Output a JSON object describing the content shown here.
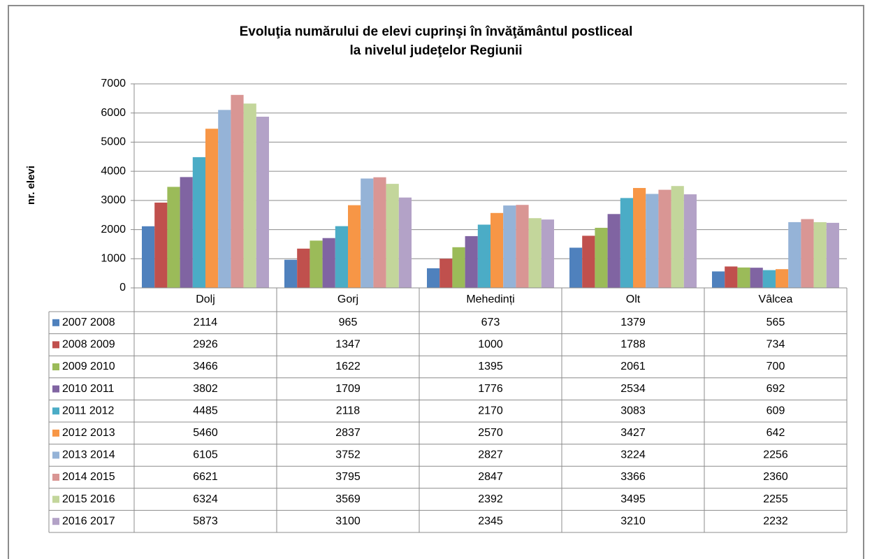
{
  "chart_data": {
    "type": "bar",
    "title": [
      "Evoluţia numărului de elevi cuprinşi în învăţământul postliceal",
      "la nivelul judeţelor Regiunii"
    ],
    "y_label": "nr. elevi",
    "categories": [
      "Dolj",
      "Gorj",
      "Mehedinți",
      "Olt",
      "Vâlcea"
    ],
    "ylim": [
      0,
      7000
    ],
    "yticks": [
      0,
      1000,
      2000,
      3000,
      4000,
      5000,
      6000,
      7000
    ],
    "grid": true,
    "legend": "table",
    "series": [
      {
        "name": "2007 2008",
        "color": "#4F81BD",
        "values": [
          2114,
          965,
          673,
          1379,
          565
        ]
      },
      {
        "name": "2008 2009",
        "color": "#C0504D",
        "values": [
          2926,
          1347,
          1000,
          1788,
          734
        ]
      },
      {
        "name": "2009 2010",
        "color": "#9BBB59",
        "values": [
          3466,
          1622,
          1395,
          2061,
          700
        ]
      },
      {
        "name": "2010 2011",
        "color": "#8064A2",
        "values": [
          3802,
          1709,
          1776,
          2534,
          692
        ]
      },
      {
        "name": "2011 2012",
        "color": "#4BACC6",
        "values": [
          4485,
          2118,
          2170,
          3083,
          609
        ]
      },
      {
        "name": "2012 2013",
        "color": "#F79646",
        "values": [
          5460,
          2837,
          2570,
          3427,
          642
        ]
      },
      {
        "name": "2013 2014",
        "color": "#95B3D7",
        "values": [
          6105,
          3752,
          2827,
          3224,
          2256
        ]
      },
      {
        "name": "2014 2015",
        "color": "#D99694",
        "values": [
          6621,
          3795,
          2847,
          3366,
          2360
        ]
      },
      {
        "name": "2015 2016",
        "color": "#C3D69B",
        "values": [
          6324,
          3569,
          2392,
          3495,
          2255
        ]
      },
      {
        "name": "2016 2017",
        "color": "#B3A2C7",
        "values": [
          5873,
          3100,
          2345,
          3210,
          2232
        ]
      }
    ]
  }
}
